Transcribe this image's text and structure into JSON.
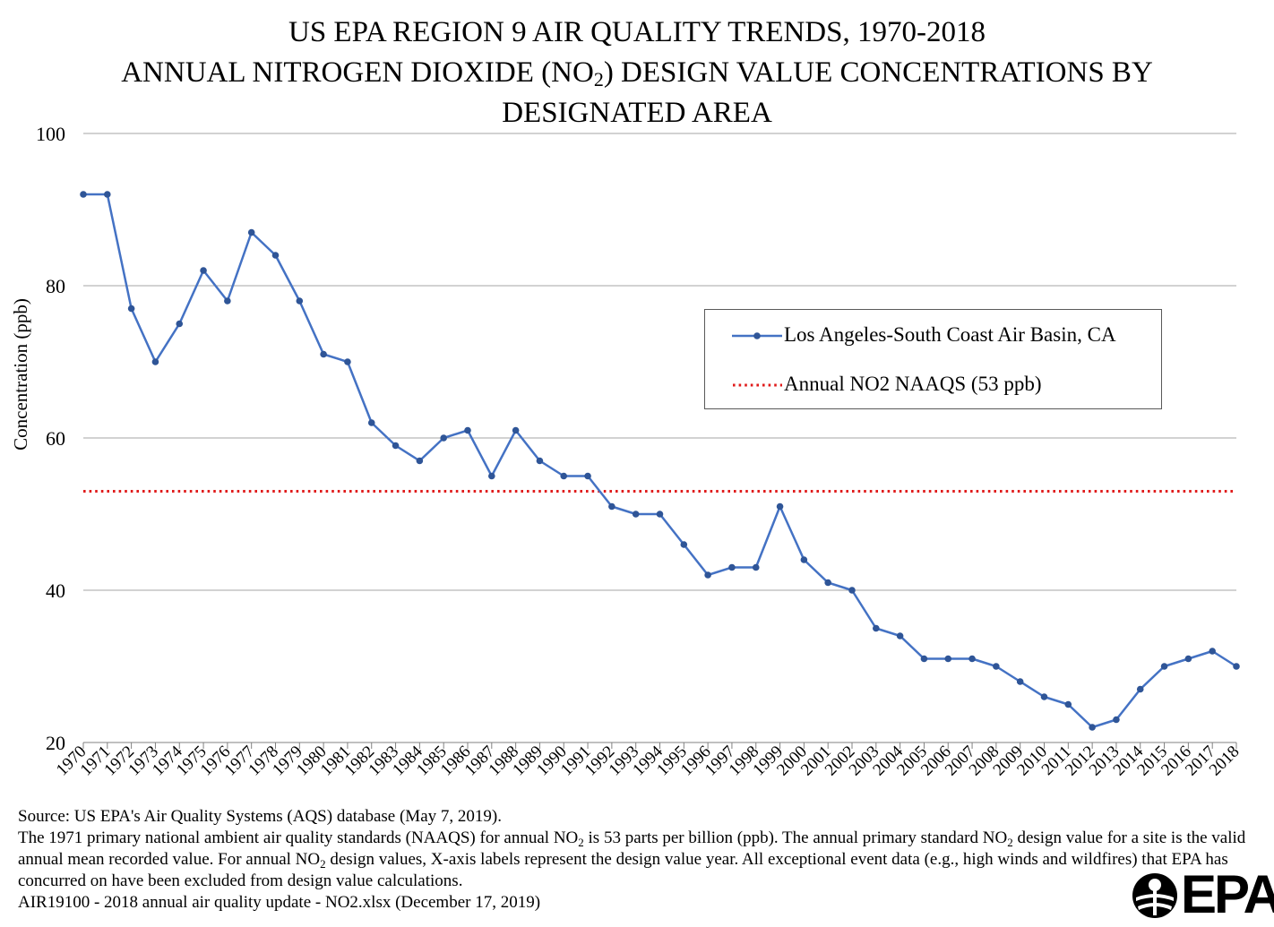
{
  "title": {
    "line1": "US EPA REGION 9 AIR QUALITY TRENDS, 1970-2018",
    "line2_pre": "ANNUAL NITROGEN DIOXIDE (NO",
    "line2_sub": "2",
    "line2_post": ") DESIGN VALUE CONCENTRATIONS BY",
    "line3": "DESIGNATED AREA"
  },
  "chart_data": {
    "type": "line",
    "title": "US EPA REGION 9 AIR QUALITY TRENDS, 1970-2018 ANNUAL NITROGEN DIOXIDE (NO2) DESIGN VALUE CONCENTRATIONS BY DESIGNATED AREA",
    "xlabel": "",
    "ylabel": "Concentration (ppb)",
    "ylim": [
      20,
      100
    ],
    "yticks": [
      20,
      40,
      60,
      80,
      100
    ],
    "grid": true,
    "legend_position": "right",
    "x": [
      "1970",
      "1971",
      "1972",
      "1973",
      "1974",
      "1975",
      "1976",
      "1977",
      "1978",
      "1979",
      "1980",
      "1981",
      "1982",
      "1983",
      "1984",
      "1985",
      "1986",
      "1987",
      "1988",
      "1989",
      "1990",
      "1991",
      "1992",
      "1993",
      "1994",
      "1995",
      "1996",
      "1997",
      "1998",
      "1999",
      "2000",
      "2001",
      "2002",
      "2003",
      "2004",
      "2005",
      "2006",
      "2007",
      "2008",
      "2009",
      "2010",
      "2011",
      "2012",
      "2013",
      "2014",
      "2015",
      "2016",
      "2017",
      "2018"
    ],
    "series": [
      {
        "name": "Los Angeles-South Coast Air Basin, CA",
        "color": "#4472c4",
        "values": [
          92,
          92,
          77,
          70,
          75,
          82,
          78,
          87,
          84,
          78,
          71,
          70,
          62,
          59,
          57,
          60,
          61,
          55,
          61,
          57,
          55,
          55,
          51,
          50,
          50,
          46,
          42,
          43,
          43,
          51,
          44,
          41,
          40,
          35,
          34,
          31,
          31,
          31,
          30,
          28,
          26,
          25,
          22,
          23,
          27,
          30,
          31,
          32,
          30
        ]
      }
    ],
    "reference_lines": [
      {
        "name": "Annual NO2 NAAQS (53 ppb)",
        "value": 53,
        "color": "#e01b1b",
        "style": "dotted"
      }
    ]
  },
  "notes": {
    "source": "Source: US EPA's Air Quality Systems (AQS) database (May 7, 2019).",
    "p2_a": "The 1971 primary national ambient air quality standards (NAAQS) for annual NO",
    "p2_sub1": "2",
    "p2_b": " is 53 parts per billion (ppb). The annual primary standard NO",
    "p2_sub2": "2",
    "p2_c": " design value for a site is the valid annual mean recorded value. For annual NO",
    "p2_sub3": "2",
    "p2_d": " design values, X-axis labels represent the design value year. All exceptional event data (e.g., high winds and wildfires) that EPA has concurred on have been excluded from design value calculations.",
    "file": "AIR19100 - 2018 annual air quality update - NO2.xlsx (December 17, 2019)"
  },
  "logo": {
    "text": "EPA"
  }
}
